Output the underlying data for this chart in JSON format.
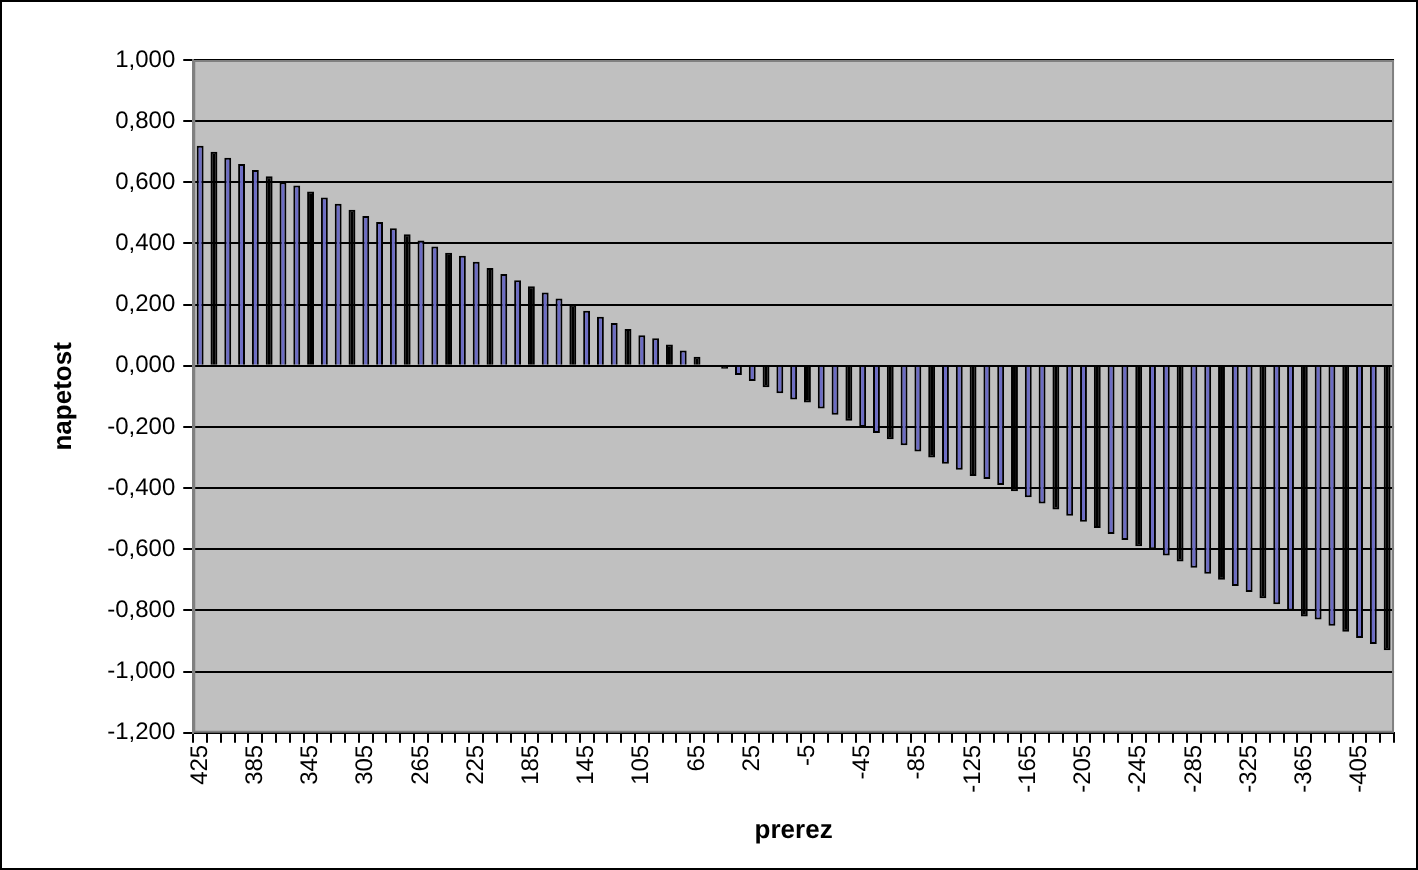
{
  "chart_data": {
    "type": "bar",
    "xlabel": "prerez",
    "ylabel": "napetost",
    "categories": [
      "425",
      null,
      null,
      null,
      "385",
      null,
      null,
      null,
      "345",
      null,
      null,
      null,
      "305",
      null,
      null,
      null,
      "265",
      null,
      null,
      null,
      "225",
      null,
      null,
      null,
      "185",
      null,
      null,
      null,
      "145",
      null,
      null,
      null,
      "105",
      null,
      null,
      null,
      "65",
      null,
      null,
      null,
      "25",
      null,
      null,
      null,
      "-5",
      null,
      null,
      null,
      "-45",
      null,
      null,
      null,
      "-85",
      null,
      null,
      null,
      "-125",
      null,
      null,
      null,
      "-165",
      null,
      null,
      null,
      "-205",
      null,
      null,
      null,
      "-245",
      null,
      null,
      null,
      "-285",
      null,
      null,
      null,
      "-325",
      null,
      null,
      null,
      "-365",
      null,
      null,
      null,
      "-405",
      null,
      null
    ],
    "values": [
      0.72,
      0.7,
      0.68,
      0.66,
      0.64,
      0.62,
      0.6,
      0.59,
      0.57,
      0.55,
      0.53,
      0.51,
      0.49,
      0.47,
      0.45,
      0.43,
      0.41,
      0.39,
      0.37,
      0.36,
      0.34,
      0.32,
      0.3,
      0.28,
      0.26,
      0.24,
      0.22,
      0.2,
      0.18,
      0.16,
      0.14,
      0.12,
      0.1,
      0.09,
      0.07,
      0.05,
      0.03,
      0.0,
      -0.01,
      -0.03,
      -0.05,
      -0.07,
      -0.09,
      -0.11,
      -0.12,
      -0.14,
      -0.16,
      -0.18,
      -0.2,
      -0.22,
      -0.24,
      -0.26,
      -0.28,
      -0.3,
      -0.32,
      -0.34,
      -0.36,
      -0.37,
      -0.39,
      -0.41,
      -0.43,
      -0.45,
      -0.47,
      -0.49,
      -0.51,
      -0.53,
      -0.55,
      -0.57,
      -0.59,
      -0.6,
      -0.62,
      -0.64,
      -0.66,
      -0.68,
      -0.7,
      -0.72,
      -0.74,
      -0.76,
      -0.78,
      -0.8,
      -0.82,
      -0.83,
      -0.85,
      -0.87,
      -0.89,
      -0.91,
      -0.93
    ],
    "colors": [
      "#6c6cc4",
      "#000000",
      "#6c6cc4",
      "#6c6cc4",
      "#6c6cc4",
      "#000000",
      "#6c6cc4",
      "#6c6cc4",
      "#000000",
      "#6c6cc4",
      "#6c6cc4",
      "#000000",
      "#6c6cc4",
      "#6c6cc4",
      "#6c6cc4",
      "#000000",
      "#6c6cc4",
      "#6c6cc4",
      "#000000",
      "#6c6cc4",
      "#6c6cc4",
      "#000000",
      "#6c6cc4",
      "#6c6cc4",
      "#000000",
      "#6c6cc4",
      "#6c6cc4",
      "#000000",
      "#6c6cc4",
      "#6c6cc4",
      "#6c6cc4",
      "#000000",
      "#6c6cc4",
      "#6c6cc4",
      "#000000",
      "#6c6cc4",
      "#000000",
      "#6c6cc4",
      "#000000",
      "#6c6cc4",
      "#6c6cc4",
      "#000000",
      "#6c6cc4",
      "#6c6cc4",
      "#000000",
      "#6c6cc4",
      "#6c6cc4",
      "#000000",
      "#6c6cc4",
      "#6c6cc4",
      "#000000",
      "#6c6cc4",
      "#6c6cc4",
      "#000000",
      "#6c6cc4",
      "#6c6cc4",
      "#000000",
      "#6c6cc4",
      "#6c6cc4",
      "#000000",
      "#6c6cc4",
      "#6c6cc4",
      "#000000",
      "#6c6cc4",
      "#6c6cc4",
      "#000000",
      "#6c6cc4",
      "#6c6cc4",
      "#000000",
      "#6c6cc4",
      "#6c6cc4",
      "#000000",
      "#6c6cc4",
      "#6c6cc4",
      "#000000",
      "#6c6cc4",
      "#6c6cc4",
      "#000000",
      "#6c6cc4",
      "#6c6cc4",
      "#000000",
      "#6c6cc4",
      "#6c6cc4",
      "#000000",
      "#6c6cc4",
      "#6c6cc4",
      "#000000"
    ],
    "ylim": [
      -1.2,
      1.0
    ],
    "yticks": [
      {
        "value": 1.0,
        "label": "1,000"
      },
      {
        "value": 0.8,
        "label": "0,800"
      },
      {
        "value": 0.6,
        "label": "0,600"
      },
      {
        "value": 0.4,
        "label": "0,400"
      },
      {
        "value": 0.2,
        "label": "0,200"
      },
      {
        "value": 0,
        "label": "0,000"
      },
      {
        "value": -0.2,
        "label": "-0,200"
      },
      {
        "value": -0.4,
        "label": "-0,400"
      },
      {
        "value": -0.6,
        "label": "-0,600"
      },
      {
        "value": -0.8,
        "label": "-0,800"
      },
      {
        "value": -1.0,
        "label": "-1,000"
      },
      {
        "value": -1.2,
        "label": "-1,200"
      }
    ],
    "grid": "y",
    "legend": false
  }
}
